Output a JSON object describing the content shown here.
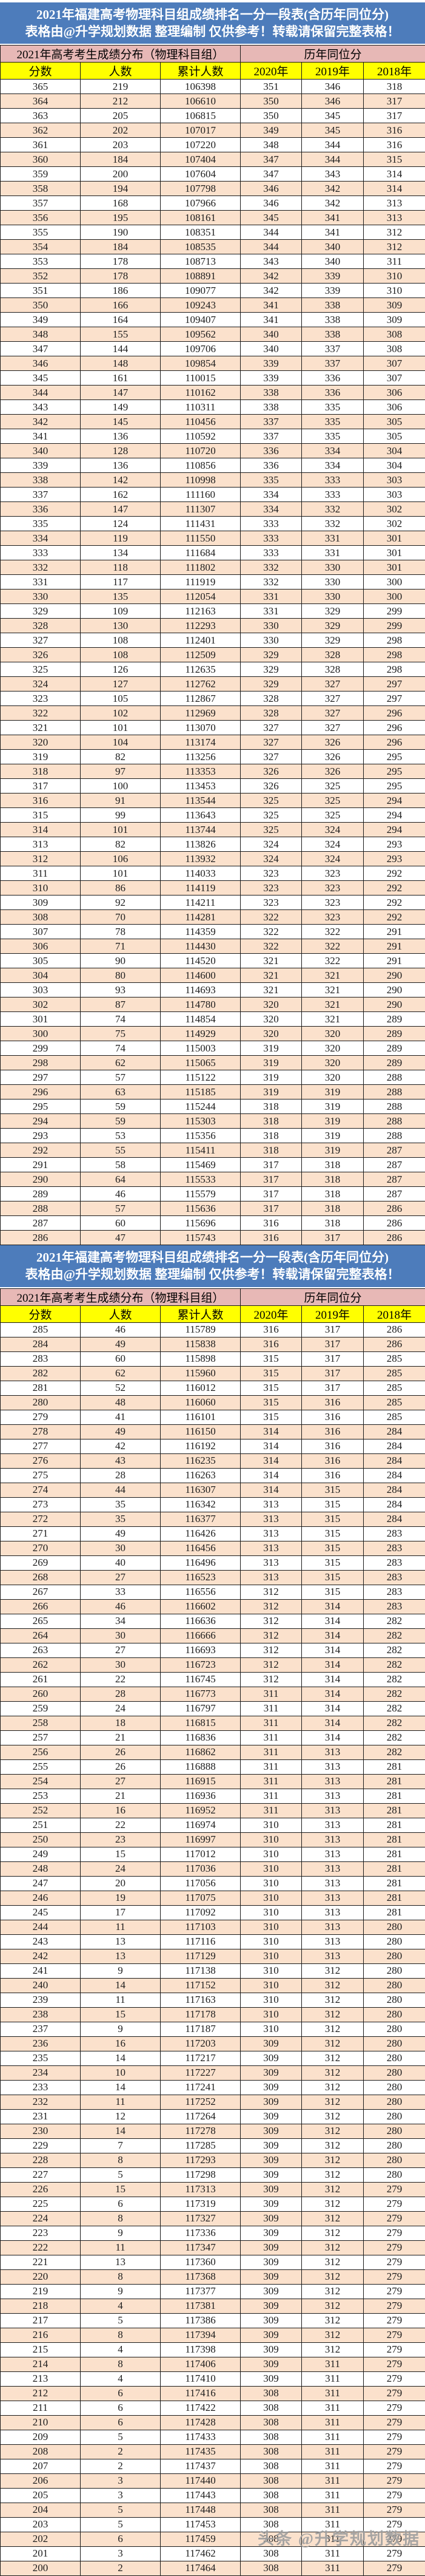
{
  "banner": {
    "line1": "2021年福建高考物理科目组成绩排名一分一段表(含历年同位分)",
    "line2": "表格由@升学规划数据 整理编制 仅供参考！转载请保留完整表格！"
  },
  "table": {
    "group_left": "2021年高考考生成绩分布（物理科目组）",
    "group_right": "历年同位分",
    "columns": [
      "分数",
      "人数",
      "累计人数",
      "2020年",
      "2019年",
      "2018年"
    ]
  },
  "colors": {
    "banner_blue": "#4d7cbb",
    "group_pink": "#e7b8b6",
    "header_yellow": "#ffff00",
    "row_peach": "#fbe1cc",
    "row_white": "#ffffff"
  },
  "watermark": "头条 @升学规划数据",
  "sections": [
    {
      "rows": [
        [
          365,
          219,
          106398,
          351,
          346,
          318
        ],
        [
          364,
          212,
          106610,
          350,
          346,
          317
        ],
        [
          363,
          205,
          106815,
          350,
          345,
          317
        ],
        [
          362,
          202,
          107017,
          349,
          345,
          316
        ],
        [
          361,
          203,
          107220,
          348,
          344,
          316
        ],
        [
          360,
          184,
          107404,
          347,
          344,
          315
        ],
        [
          359,
          200,
          107604,
          347,
          343,
          314
        ],
        [
          358,
          194,
          107798,
          346,
          342,
          314
        ],
        [
          357,
          168,
          107966,
          346,
          342,
          313
        ],
        [
          356,
          195,
          108161,
          345,
          341,
          313
        ],
        [
          355,
          190,
          108351,
          344,
          341,
          312
        ],
        [
          354,
          184,
          108535,
          344,
          340,
          312
        ],
        [
          353,
          178,
          108713,
          343,
          340,
          311
        ],
        [
          352,
          178,
          108891,
          342,
          339,
          310
        ],
        [
          351,
          186,
          109077,
          342,
          339,
          310
        ],
        [
          350,
          166,
          109243,
          341,
          338,
          309
        ],
        [
          349,
          164,
          109407,
          341,
          338,
          309
        ],
        [
          348,
          155,
          109562,
          340,
          338,
          308
        ],
        [
          347,
          144,
          109706,
          340,
          337,
          308
        ],
        [
          346,
          148,
          109854,
          339,
          337,
          307
        ],
        [
          345,
          161,
          110015,
          339,
          336,
          307
        ],
        [
          344,
          147,
          110162,
          338,
          336,
          306
        ],
        [
          343,
          149,
          110311,
          338,
          335,
          306
        ],
        [
          342,
          145,
          110456,
          337,
          335,
          305
        ],
        [
          341,
          136,
          110592,
          337,
          335,
          305
        ],
        [
          340,
          128,
          110720,
          336,
          334,
          304
        ],
        [
          339,
          136,
          110856,
          336,
          334,
          304
        ],
        [
          338,
          142,
          110998,
          335,
          333,
          303
        ],
        [
          337,
          162,
          111160,
          334,
          333,
          303
        ],
        [
          336,
          147,
          111307,
          334,
          332,
          302
        ],
        [
          335,
          124,
          111431,
          333,
          332,
          302
        ],
        [
          334,
          119,
          111550,
          333,
          331,
          301
        ],
        [
          333,
          134,
          111684,
          333,
          331,
          301
        ],
        [
          332,
          118,
          111802,
          332,
          330,
          301
        ],
        [
          331,
          117,
          111919,
          332,
          330,
          300
        ],
        [
          330,
          135,
          112054,
          331,
          330,
          300
        ],
        [
          329,
          109,
          112163,
          331,
          329,
          299
        ],
        [
          328,
          130,
          112293,
          330,
          329,
          299
        ],
        [
          327,
          108,
          112401,
          330,
          329,
          298
        ],
        [
          326,
          108,
          112509,
          329,
          328,
          298
        ],
        [
          325,
          126,
          112635,
          329,
          328,
          298
        ],
        [
          324,
          127,
          112762,
          329,
          327,
          297
        ],
        [
          323,
          105,
          112867,
          328,
          327,
          297
        ],
        [
          322,
          102,
          112969,
          328,
          327,
          296
        ],
        [
          321,
          101,
          113070,
          327,
          327,
          296
        ],
        [
          320,
          104,
          113174,
          327,
          326,
          296
        ],
        [
          319,
          82,
          113256,
          327,
          326,
          295
        ],
        [
          318,
          97,
          113353,
          326,
          326,
          295
        ],
        [
          317,
          100,
          113453,
          326,
          325,
          295
        ],
        [
          316,
          91,
          113544,
          325,
          325,
          294
        ],
        [
          315,
          99,
          113643,
          325,
          325,
          294
        ],
        [
          314,
          101,
          113744,
          325,
          324,
          294
        ],
        [
          313,
          82,
          113826,
          324,
          324,
          293
        ],
        [
          312,
          106,
          113932,
          324,
          324,
          293
        ],
        [
          311,
          101,
          114033,
          323,
          323,
          292
        ],
        [
          310,
          86,
          114119,
          323,
          323,
          292
        ],
        [
          309,
          92,
          114211,
          323,
          323,
          292
        ],
        [
          308,
          70,
          114281,
          322,
          323,
          292
        ],
        [
          307,
          78,
          114359,
          322,
          322,
          291
        ],
        [
          306,
          71,
          114430,
          322,
          322,
          291
        ],
        [
          305,
          90,
          114520,
          321,
          322,
          291
        ],
        [
          304,
          80,
          114600,
          321,
          321,
          290
        ],
        [
          303,
          93,
          114693,
          321,
          321,
          290
        ],
        [
          302,
          87,
          114780,
          320,
          321,
          290
        ],
        [
          301,
          74,
          114854,
          320,
          321,
          289
        ],
        [
          300,
          75,
          114929,
          320,
          320,
          289
        ],
        [
          299,
          74,
          115003,
          319,
          320,
          289
        ],
        [
          298,
          62,
          115065,
          319,
          320,
          289
        ],
        [
          297,
          57,
          115122,
          319,
          320,
          288
        ],
        [
          296,
          63,
          115185,
          319,
          319,
          288
        ],
        [
          295,
          59,
          115244,
          318,
          319,
          288
        ],
        [
          294,
          59,
          115303,
          318,
          319,
          288
        ],
        [
          293,
          53,
          115356,
          318,
          319,
          288
        ],
        [
          292,
          55,
          115411,
          318,
          319,
          287
        ],
        [
          291,
          58,
          115469,
          317,
          318,
          287
        ],
        [
          290,
          64,
          115533,
          317,
          318,
          287
        ],
        [
          289,
          46,
          115579,
          317,
          318,
          287
        ],
        [
          288,
          57,
          115636,
          317,
          318,
          286
        ],
        [
          287,
          60,
          115696,
          316,
          318,
          286
        ],
        [
          286,
          47,
          115743,
          316,
          317,
          286
        ]
      ]
    },
    {
      "rows": [
        [
          285,
          46,
          115789,
          316,
          317,
          286
        ],
        [
          284,
          49,
          115838,
          316,
          317,
          286
        ],
        [
          283,
          60,
          115898,
          315,
          317,
          285
        ],
        [
          282,
          62,
          115960,
          315,
          317,
          285
        ],
        [
          281,
          52,
          116012,
          315,
          317,
          285
        ],
        [
          280,
          48,
          116060,
          315,
          316,
          285
        ],
        [
          279,
          41,
          116101,
          315,
          316,
          285
        ],
        [
          278,
          49,
          116150,
          314,
          316,
          284
        ],
        [
          277,
          42,
          116192,
          314,
          316,
          284
        ],
        [
          276,
          43,
          116235,
          314,
          316,
          284
        ],
        [
          275,
          28,
          116263,
          314,
          316,
          284
        ],
        [
          274,
          44,
          116307,
          314,
          315,
          284
        ],
        [
          273,
          35,
          116342,
          313,
          315,
          284
        ],
        [
          272,
          35,
          116377,
          313,
          315,
          284
        ],
        [
          271,
          49,
          116426,
          313,
          315,
          283
        ],
        [
          270,
          30,
          116456,
          313,
          315,
          283
        ],
        [
          269,
          40,
          116496,
          313,
          315,
          283
        ],
        [
          268,
          27,
          116523,
          313,
          315,
          283
        ],
        [
          267,
          33,
          116556,
          312,
          315,
          283
        ],
        [
          266,
          46,
          116602,
          312,
          314,
          283
        ],
        [
          265,
          34,
          116636,
          312,
          314,
          282
        ],
        [
          264,
          30,
          116666,
          312,
          314,
          282
        ],
        [
          263,
          27,
          116693,
          312,
          314,
          282
        ],
        [
          262,
          30,
          116723,
          312,
          314,
          282
        ],
        [
          261,
          22,
          116745,
          312,
          314,
          282
        ],
        [
          260,
          28,
          116773,
          311,
          314,
          282
        ],
        [
          259,
          24,
          116797,
          311,
          314,
          282
        ],
        [
          258,
          18,
          116815,
          311,
          314,
          282
        ],
        [
          257,
          21,
          116836,
          311,
          314,
          282
        ],
        [
          256,
          26,
          116862,
          311,
          313,
          282
        ],
        [
          255,
          26,
          116888,
          311,
          313,
          281
        ],
        [
          254,
          27,
          116915,
          311,
          313,
          281
        ],
        [
          253,
          21,
          116936,
          311,
          313,
          281
        ],
        [
          252,
          16,
          116952,
          311,
          313,
          281
        ],
        [
          251,
          22,
          116974,
          310,
          313,
          281
        ],
        [
          250,
          23,
          116997,
          310,
          313,
          281
        ],
        [
          249,
          15,
          117012,
          310,
          313,
          281
        ],
        [
          248,
          24,
          117036,
          310,
          313,
          281
        ],
        [
          247,
          20,
          117056,
          310,
          313,
          281
        ],
        [
          246,
          19,
          117075,
          310,
          313,
          281
        ],
        [
          245,
          17,
          117092,
          310,
          313,
          281
        ],
        [
          244,
          11,
          117103,
          310,
          313,
          280
        ],
        [
          243,
          13,
          117116,
          310,
          313,
          280
        ],
        [
          242,
          13,
          117129,
          310,
          313,
          280
        ],
        [
          241,
          9,
          117138,
          310,
          312,
          280
        ],
        [
          240,
          14,
          117152,
          310,
          312,
          280
        ],
        [
          239,
          11,
          117163,
          310,
          312,
          280
        ],
        [
          238,
          15,
          117178,
          310,
          312,
          280
        ],
        [
          237,
          9,
          117187,
          310,
          312,
          280
        ],
        [
          236,
          16,
          117203,
          309,
          312,
          280
        ],
        [
          235,
          14,
          117217,
          309,
          312,
          280
        ],
        [
          234,
          10,
          117227,
          309,
          312,
          280
        ],
        [
          233,
          14,
          117241,
          309,
          312,
          280
        ],
        [
          232,
          11,
          117252,
          309,
          312,
          280
        ],
        [
          231,
          12,
          117264,
          309,
          312,
          280
        ],
        [
          230,
          14,
          117278,
          309,
          312,
          280
        ],
        [
          229,
          7,
          117285,
          309,
          312,
          280
        ],
        [
          228,
          8,
          117293,
          309,
          312,
          280
        ],
        [
          227,
          5,
          117298,
          309,
          312,
          280
        ],
        [
          226,
          15,
          117313,
          309,
          312,
          279
        ],
        [
          225,
          6,
          117319,
          309,
          312,
          279
        ],
        [
          224,
          8,
          117327,
          309,
          312,
          279
        ],
        [
          223,
          9,
          117336,
          309,
          312,
          279
        ],
        [
          222,
          11,
          117347,
          309,
          312,
          279
        ],
        [
          221,
          13,
          117360,
          309,
          312,
          279
        ],
        [
          220,
          8,
          117368,
          309,
          312,
          279
        ],
        [
          219,
          9,
          117377,
          309,
          312,
          279
        ],
        [
          218,
          4,
          117381,
          309,
          312,
          279
        ],
        [
          217,
          5,
          117386,
          309,
          312,
          279
        ],
        [
          216,
          8,
          117394,
          309,
          312,
          279
        ],
        [
          215,
          4,
          117398,
          309,
          312,
          279
        ],
        [
          214,
          8,
          117406,
          309,
          311,
          279
        ],
        [
          213,
          4,
          117410,
          309,
          311,
          279
        ],
        [
          212,
          6,
          117416,
          308,
          311,
          279
        ],
        [
          211,
          6,
          117422,
          308,
          311,
          279
        ],
        [
          210,
          6,
          117428,
          308,
          311,
          279
        ],
        [
          209,
          5,
          117433,
          308,
          311,
          279
        ],
        [
          208,
          2,
          117435,
          308,
          311,
          279
        ],
        [
          207,
          2,
          117437,
          308,
          311,
          279
        ],
        [
          206,
          3,
          117440,
          308,
          311,
          279
        ],
        [
          205,
          3,
          117443,
          308,
          311,
          279
        ],
        [
          204,
          5,
          117448,
          308,
          311,
          279
        ],
        [
          203,
          5,
          117453,
          308,
          311,
          279
        ],
        [
          202,
          6,
          117459,
          308,
          311,
          279
        ],
        [
          201,
          3,
          117462,
          308,
          311,
          279
        ],
        [
          200,
          2,
          117464,
          308,
          311,
          279
        ]
      ]
    }
  ]
}
